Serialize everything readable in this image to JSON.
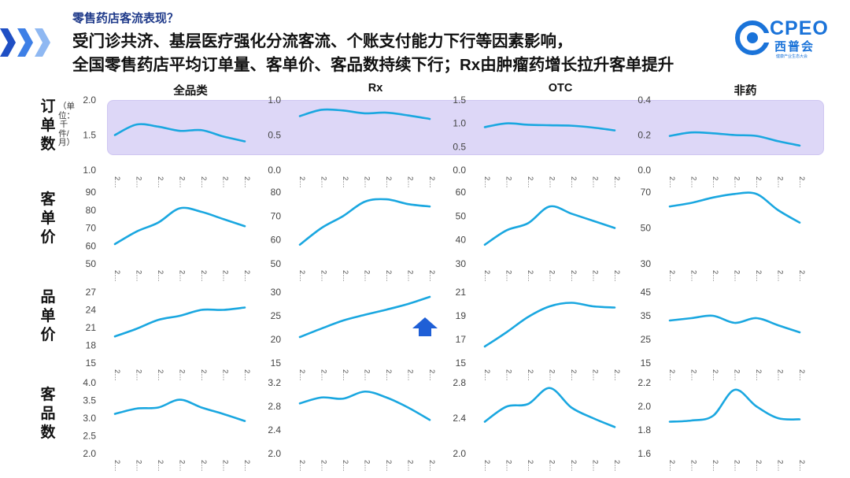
{
  "subtitle": "零售药店客流表现？",
  "headline": {
    "line1": "受门诊共济、基层医疗强化分流客流、个账支付能力下行等因素影响，",
    "line2": "全国零售药店平均订单量、客单价、客品数持续下行；Rx由肿瘤药增长拉升客单提升"
  },
  "logo": {
    "mark": "CPEO",
    "name": "西普会",
    "tagline": "健康产业生态大会"
  },
  "colors": {
    "line": "#1aa7e0",
    "band": "#ddd7f7",
    "arrow": "#1f5fd6",
    "chevron": "#2f6fe0"
  },
  "icons": {
    "chevrons": "chevron-right-icon",
    "arrow": "arrow-up-icon",
    "logo": "cpeo-logo-icon"
  },
  "columns": [
    "全品类",
    "Rx",
    "OTC",
    "非药"
  ],
  "rows": [
    {
      "label": [
        "订",
        "单",
        "数"
      ]
    },
    {
      "label": [
        "客",
        "单",
        "价"
      ]
    },
    {
      "label": [
        "品",
        "单",
        "价"
      ]
    },
    {
      "label": [
        "客",
        "品",
        "数"
      ]
    }
  ],
  "unit_note": "（单位：千件/月）",
  "chart_data": {
    "type": "line",
    "x": [
      "2…",
      "2…",
      "2…",
      "2…",
      "2…",
      "2…",
      "2…"
    ],
    "x_tick_label": "2…",
    "panels": [
      {
        "row": 0,
        "col": 0,
        "metric": "订单数",
        "column": "全品类",
        "ylim": [
          1.0,
          2.0
        ],
        "yticks": [
          "1.0",
          "1.5",
          "2.0"
        ],
        "values": [
          1.5,
          1.65,
          1.62,
          1.56,
          1.57,
          1.48,
          1.41
        ]
      },
      {
        "row": 0,
        "col": 1,
        "metric": "订单数",
        "column": "Rx",
        "ylim": [
          0.0,
          1.0
        ],
        "yticks": [
          "0.0",
          "0.5",
          "1.0"
        ],
        "values": [
          0.77,
          0.86,
          0.85,
          0.81,
          0.82,
          0.78,
          0.73
        ]
      },
      {
        "row": 0,
        "col": 2,
        "metric": "订单数",
        "column": "OTC",
        "ylim": [
          0.0,
          1.5
        ],
        "yticks": [
          "0.0",
          "0.5",
          "1.0",
          "1.5"
        ],
        "values": [
          0.92,
          1.0,
          0.97,
          0.96,
          0.95,
          0.91,
          0.85
        ]
      },
      {
        "row": 0,
        "col": 3,
        "metric": "订单数",
        "column": "非药",
        "ylim": [
          0.0,
          0.4
        ],
        "yticks": [
          "0.0",
          "0.2",
          "0.4"
        ],
        "values": [
          0.195,
          0.215,
          0.21,
          0.2,
          0.195,
          0.165,
          0.14
        ]
      },
      {
        "row": 1,
        "col": 0,
        "metric": "客单价",
        "column": "全品类",
        "ylim": [
          50,
          90
        ],
        "yticks": [
          "50",
          "60",
          "70",
          "80",
          "90"
        ],
        "values": [
          61,
          68,
          73,
          81,
          79,
          75,
          71
        ]
      },
      {
        "row": 1,
        "col": 1,
        "metric": "客单价",
        "column": "Rx",
        "ylim": [
          50,
          80
        ],
        "yticks": [
          "50",
          "60",
          "70",
          "80"
        ],
        "values": [
          58,
          65,
          70,
          76,
          77,
          75,
          74
        ]
      },
      {
        "row": 1,
        "col": 2,
        "metric": "客单价",
        "column": "OTC",
        "ylim": [
          30,
          60
        ],
        "yticks": [
          "30",
          "40",
          "50",
          "60"
        ],
        "values": [
          38,
          44,
          47,
          54,
          51,
          48,
          45
        ]
      },
      {
        "row": 1,
        "col": 3,
        "metric": "客单价",
        "column": "非药",
        "ylim": [
          30,
          70
        ],
        "yticks": [
          "30",
          "50",
          "70"
        ],
        "values": [
          62,
          64,
          67,
          69,
          69,
          60,
          53
        ]
      },
      {
        "row": 2,
        "col": 0,
        "metric": "品单价",
        "column": "全品类",
        "ylim": [
          15,
          27
        ],
        "yticks": [
          "15",
          "18",
          "21",
          "24",
          "27"
        ],
        "values": [
          19.5,
          20.8,
          22.3,
          23.0,
          24.0,
          24.0,
          24.4
        ]
      },
      {
        "row": 2,
        "col": 1,
        "metric": "品单价",
        "column": "Rx",
        "ylim": [
          15,
          30
        ],
        "yticks": [
          "15",
          "20",
          "25",
          "30"
        ],
        "values": [
          20.5,
          22.3,
          24.0,
          25.2,
          26.3,
          27.5,
          29.0
        ]
      },
      {
        "row": 2,
        "col": 2,
        "metric": "品单价",
        "column": "OTC",
        "ylim": [
          15,
          21
        ],
        "yticks": [
          "15",
          "17",
          "19",
          "21"
        ],
        "values": [
          16.4,
          17.6,
          18.9,
          19.8,
          20.1,
          19.8,
          19.7
        ]
      },
      {
        "row": 2,
        "col": 3,
        "metric": "品单价",
        "column": "非药",
        "ylim": [
          15,
          45
        ],
        "yticks": [
          "15",
          "25",
          "35",
          "45"
        ],
        "values": [
          33,
          34,
          35,
          32,
          34,
          31,
          28
        ]
      },
      {
        "row": 3,
        "col": 0,
        "metric": "客品数",
        "column": "全品类",
        "ylim": [
          2.0,
          4.0
        ],
        "yticks": [
          "2.0",
          "2.5",
          "3.0",
          "3.5",
          "4.0"
        ],
        "values": [
          3.12,
          3.27,
          3.3,
          3.52,
          3.3,
          3.12,
          2.92
        ]
      },
      {
        "row": 3,
        "col": 1,
        "metric": "客品数",
        "column": "Rx",
        "ylim": [
          2.0,
          3.2
        ],
        "yticks": [
          "2.0",
          "2.4",
          "2.8",
          "3.2"
        ],
        "values": [
          2.85,
          2.95,
          2.93,
          3.05,
          2.95,
          2.78,
          2.57
        ]
      },
      {
        "row": 3,
        "col": 2,
        "metric": "客品数",
        "column": "OTC",
        "ylim": [
          2.0,
          2.8
        ],
        "yticks": [
          "2.0",
          "2.4",
          "2.8"
        ],
        "values": [
          2.36,
          2.53,
          2.56,
          2.74,
          2.52,
          2.4,
          2.3
        ]
      },
      {
        "row": 3,
        "col": 3,
        "metric": "客品数",
        "column": "非药",
        "ylim": [
          1.6,
          2.2
        ],
        "yticks": [
          "1.6",
          "1.8",
          "2.0",
          "2.2"
        ],
        "values": [
          1.87,
          1.88,
          1.92,
          2.14,
          2.0,
          1.9,
          1.89
        ]
      }
    ]
  }
}
